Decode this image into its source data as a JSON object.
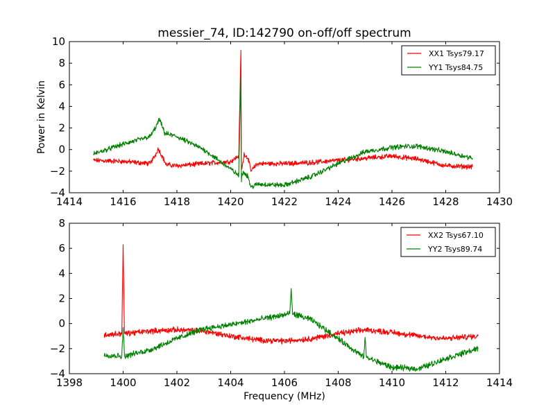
{
  "chart_data": [
    {
      "type": "line",
      "title": "messier_74, ID:142790 on-off/off spectrum",
      "xlabel": "",
      "ylabel": "Power in Kelvin",
      "xlim": [
        1414,
        1430
      ],
      "ylim": [
        -4,
        10
      ],
      "xticks": [
        "1414",
        "1416",
        "1418",
        "1420",
        "1422",
        "1424",
        "1426",
        "1428",
        "1430"
      ],
      "yticks": [
        "−4",
        "−2",
        "0",
        "2",
        "4",
        "6",
        "8",
        "10"
      ],
      "xtick_values": [
        1414,
        1416,
        1418,
        1420,
        1422,
        1424,
        1426,
        1428,
        1430
      ],
      "ytick_values": [
        -4,
        -2,
        0,
        2,
        4,
        6,
        8,
        10
      ],
      "grid": false,
      "legend_position": "top-right",
      "series": [
        {
          "name": "XX1 Tsys79.17",
          "color": "#ff0000",
          "x": [
            1414.9,
            1416.0,
            1417.0,
            1417.2,
            1417.3,
            1417.45,
            1417.6,
            1418.0,
            1419.0,
            1420.0,
            1420.3,
            1420.38,
            1420.4,
            1420.42,
            1420.5,
            1420.65,
            1420.75,
            1421.0,
            1422.0,
            1423.0,
            1424.0,
            1425.0,
            1426.0,
            1427.0,
            1428.0,
            1429.0
          ],
          "y": [
            -1.0,
            -1.1,
            -1.3,
            -0.5,
            0.1,
            -0.6,
            -1.4,
            -1.5,
            -1.3,
            -1.1,
            -0.6,
            9.2,
            -1.3,
            -1.8,
            -0.4,
            -0.8,
            -2.0,
            -1.3,
            -1.3,
            -1.2,
            -1.0,
            -0.8,
            -0.6,
            -0.9,
            -1.5,
            -1.6
          ]
        },
        {
          "name": "YY1 Tsys84.75",
          "color": "#008000",
          "x": [
            1414.9,
            1416.0,
            1417.0,
            1417.2,
            1417.35,
            1417.55,
            1418.0,
            1419.0,
            1420.0,
            1420.3,
            1420.38,
            1420.4,
            1420.42,
            1420.5,
            1420.65,
            1420.75,
            1421.0,
            1422.0,
            1423.0,
            1424.0,
            1425.0,
            1426.0,
            1426.5,
            1427.0,
            1428.0,
            1429.0
          ],
          "y": [
            -0.4,
            0.5,
            1.2,
            2.0,
            2.8,
            1.5,
            1.2,
            0.0,
            -1.8,
            -2.4,
            6.8,
            -3.0,
            -2.2,
            -2.1,
            -2.5,
            -3.5,
            -3.2,
            -3.3,
            -2.5,
            -1.3,
            -0.2,
            0.2,
            0.3,
            0.3,
            -0.2,
            -0.8
          ]
        }
      ]
    },
    {
      "type": "line",
      "title": "",
      "xlabel": "Frequency (MHz)",
      "ylabel": "",
      "xlim": [
        1398,
        1414
      ],
      "ylim": [
        -4,
        8
      ],
      "xticks": [
        "1398",
        "1400",
        "1402",
        "1404",
        "1406",
        "1408",
        "1410",
        "1412",
        "1414"
      ],
      "yticks": [
        "−4",
        "−2",
        "0",
        "2",
        "4",
        "6",
        "8"
      ],
      "xtick_values": [
        1398,
        1400,
        1402,
        1404,
        1406,
        1408,
        1410,
        1412,
        1414
      ],
      "ytick_values": [
        -4,
        -2,
        0,
        2,
        4,
        6,
        8
      ],
      "grid": false,
      "legend_position": "top-right",
      "series": [
        {
          "name": "XX2 Tsys67.10",
          "color": "#ff0000",
          "x": [
            1399.3,
            1399.95,
            1400.0,
            1400.05,
            1401.0,
            1402.0,
            1403.0,
            1404.0,
            1405.0,
            1406.0,
            1407.0,
            1408.0,
            1409.0,
            1410.0,
            1411.0,
            1412.0,
            1413.2
          ],
          "y": [
            -0.9,
            -0.8,
            6.3,
            -0.8,
            -0.6,
            -0.5,
            -0.6,
            -1.0,
            -1.3,
            -1.4,
            -1.2,
            -0.8,
            -0.5,
            -0.7,
            -1.0,
            -1.2,
            -1.0
          ]
        },
        {
          "name": "YY2 Tsys89.74",
          "color": "#008000",
          "x": [
            1399.3,
            1399.95,
            1400.0,
            1400.05,
            1401.0,
            1402.0,
            1403.0,
            1404.0,
            1405.0,
            1406.0,
            1406.2,
            1406.25,
            1406.3,
            1407.0,
            1408.0,
            1408.95,
            1409.0,
            1409.05,
            1410.0,
            1411.0,
            1412.0,
            1413.2
          ],
          "y": [
            -2.5,
            -2.6,
            -0.3,
            -2.6,
            -2.1,
            -1.2,
            -0.4,
            -0.1,
            0.3,
            0.7,
            0.8,
            2.8,
            0.8,
            0.3,
            -1.2,
            -2.7,
            -1.1,
            -2.7,
            -3.5,
            -3.6,
            -2.8,
            -2.0
          ]
        }
      ]
    }
  ]
}
